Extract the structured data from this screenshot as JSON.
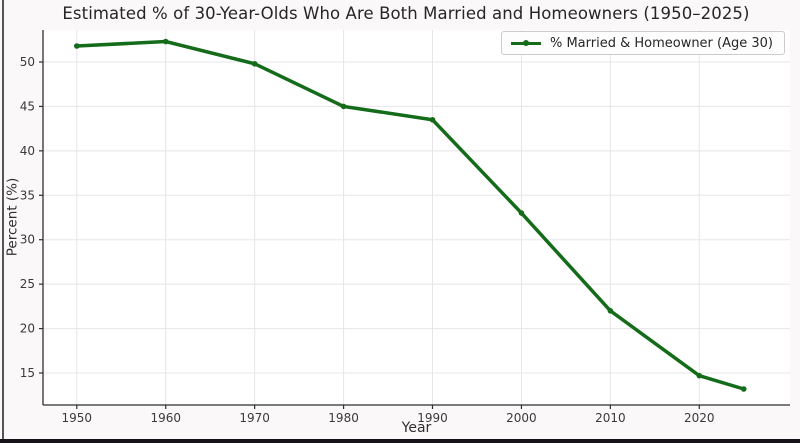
{
  "window": {
    "left_border_color": "#56525a",
    "bottom_bar_color": "#16121a",
    "figure_bg": "#faf8f9",
    "plot_bg": "#ffffff"
  },
  "chart_data": {
    "type": "line",
    "title": "Estimated % of 30-Year-Olds Who Are Both Married and Homeowners (1950–2025)",
    "xlabel": "Year",
    "ylabel": "Percent (%)",
    "x": [
      1950,
      1960,
      1970,
      1980,
      1990,
      2000,
      2010,
      2020,
      2025
    ],
    "series": [
      {
        "name": "% Married & Homeowner (Age 30)",
        "color": "#146B1A",
        "values": [
          51.8,
          52.3,
          49.8,
          45.0,
          43.5,
          33.0,
          22.0,
          14.7,
          13.2
        ]
      }
    ],
    "xticks": [
      1950,
      1960,
      1970,
      1980,
      1990,
      2000,
      2010,
      2020
    ],
    "yticks": [
      15,
      20,
      25,
      30,
      35,
      40,
      45,
      50
    ],
    "xlim": [
      1946.2,
      2030.2
    ],
    "ylim": [
      11.4,
      53.6
    ],
    "grid": true,
    "legend_position": "upper right",
    "colors": {
      "grid": "#e7e5e8",
      "spine": "#2f2f2f",
      "tick_text": "#3a3a3a"
    },
    "marker": "circle",
    "line_width": 3.5
  }
}
